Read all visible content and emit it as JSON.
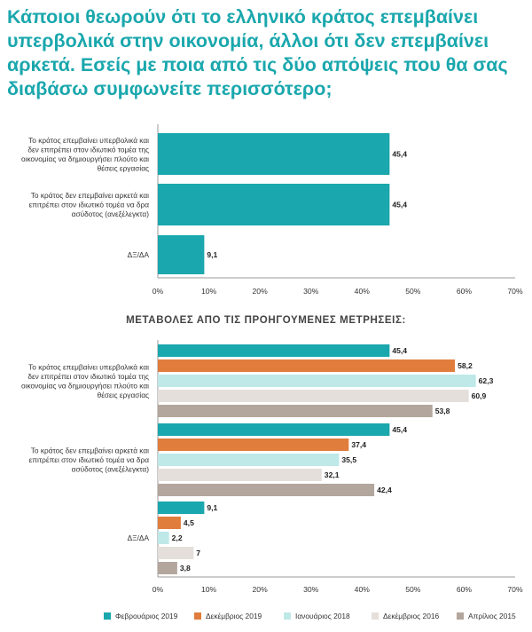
{
  "title": "Κάποιοι θεωρούν ότι το ελληνικό κράτος επεμβαίνει υπερβολικά στην οικονομία, άλλοι ότι δεν επεμβαίνει αρκετά. Εσείς με ποια από τις δύο απόψεις που θα σας διαβάσω συμφωνείτε περισσότερο;",
  "colors": {
    "title": "#1aa7ad",
    "feb2019": "#1aa7ad",
    "dec2019": "#e07d3c",
    "jan2018": "#bfe8e8",
    "dec2016": "#e4dfdb",
    "apr2015": "#b3a69c",
    "axis": "#999999"
  },
  "chart_data": [
    {
      "type": "bar",
      "orientation": "horizontal",
      "categories": [
        [
          "Το κράτος επεμβαίνει υπερβολικά και",
          "δεν επιτρέπει στον ιδιωτικό τομέα της",
          "οικονομίας να δημιουργήσει πλούτο και",
          "θέσεις εργασίας"
        ],
        [
          "Το κράτος δεν επεμβαίνει αρκετά και",
          "επιτρέπει στον ιδιωτικό τομέα να δρα",
          "ασύδοτος (ανεξέλεγκτα)"
        ],
        [
          "ΔΞ/ΔΑ"
        ]
      ],
      "values": [
        45.4,
        45.4,
        9.1
      ],
      "value_labels": [
        "45,4",
        "45,4",
        "9,1"
      ],
      "xlim": [
        0,
        70
      ],
      "ticks": [
        "0%",
        "10%",
        "20%",
        "30%",
        "40%",
        "50%",
        "60%",
        "70%"
      ],
      "grid": false
    },
    {
      "type": "bar",
      "orientation": "horizontal",
      "title": "ΜΕΤΑΒΟΛΕΣ ΑΠΟ ΤΙΣ ΠΡΟΗΓΟΥΜΕΝΕΣ ΜΕΤΡΗΣΕΙΣ:",
      "categories": [
        [
          "Το κράτος επεμβαίνει υπερβολικά και",
          "δεν επιτρέπει στον ιδιωτικό τομέα της",
          "οικονομίας να δημιουργήσει πλούτο και",
          "θέσεις εργασίας"
        ],
        [
          "Το κράτος δεν επεμβαίνει αρκετά και",
          "επιτρέπει στον ιδιωτικό τομέα να δρα",
          "ασύδοτος (ανεξέλεγκτα)"
        ],
        [
          "ΔΞ/ΔΑ"
        ]
      ],
      "series": [
        {
          "name": "Φεβρουάριος 2019",
          "color_key": "feb2019",
          "values": [
            45.4,
            45.4,
            9.1
          ],
          "value_labels": [
            "45,4",
            "45,4",
            "9,1"
          ]
        },
        {
          "name": "Δεκέμβριος 2019",
          "color_key": "dec2019",
          "values": [
            58.2,
            37.4,
            4.5
          ],
          "value_labels": [
            "58,2",
            "37,4",
            "4,5"
          ]
        },
        {
          "name": "Ιανουάριος 2018",
          "color_key": "jan2018",
          "values": [
            62.3,
            35.5,
            2.2
          ],
          "value_labels": [
            "62,3",
            "35,5",
            "2,2"
          ]
        },
        {
          "name": "Δεκέμβριος 2016",
          "color_key": "dec2016",
          "values": [
            60.9,
            32.1,
            7
          ],
          "value_labels": [
            "60,9",
            "32,1",
            "7"
          ]
        },
        {
          "name": "Απρίλιος 2015",
          "color_key": "apr2015",
          "values": [
            53.8,
            42.4,
            3.8
          ],
          "value_labels": [
            "53,8",
            "42,4",
            "3,8"
          ]
        }
      ],
      "xlim": [
        0,
        70
      ],
      "ticks": [
        "0%",
        "10%",
        "20%",
        "30%",
        "40%",
        "50%",
        "60%",
        "70%"
      ],
      "grid": false,
      "legend": "bottom"
    }
  ]
}
